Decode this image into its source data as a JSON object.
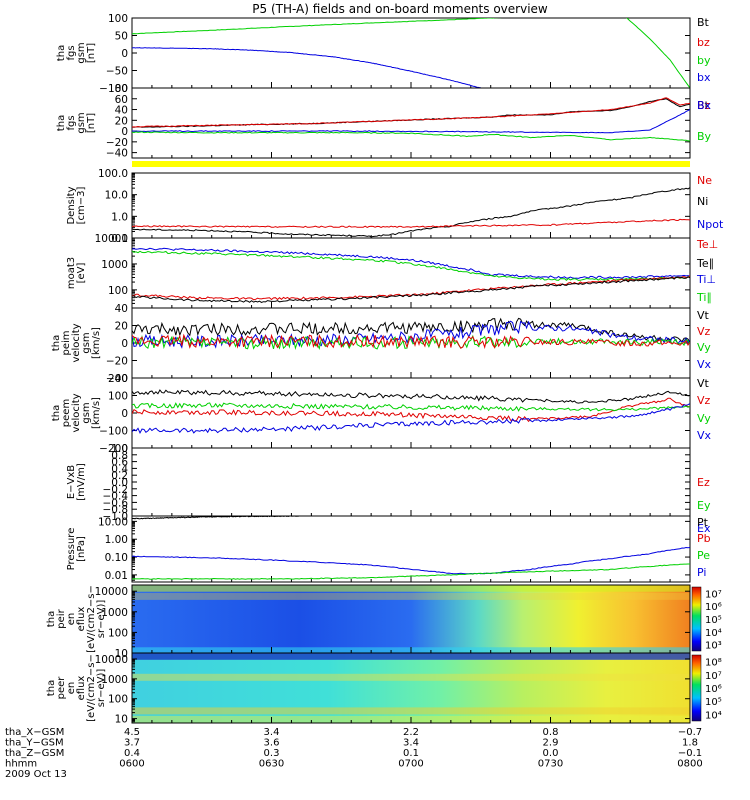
{
  "title": "P5 (TH-A) fields and on-board moments overview",
  "date_label": "2009 Oct 13",
  "colors": {
    "black": "#000000",
    "red": "#e00000",
    "green": "#00d000",
    "blue": "#0000e0",
    "yellow": "#ffff00"
  },
  "chart_data": [
    {
      "id": "fgs1",
      "type": "line",
      "ylabel": [
        "tha",
        "fgs",
        "gsm",
        "[nT]"
      ],
      "ylim": [
        -100,
        100
      ],
      "yscale": "linear",
      "yticks": [
        "100",
        "50",
        "0",
        "−50",
        "−100"
      ],
      "ytick_values": [
        100,
        50,
        0,
        -50,
        -100
      ],
      "legend": [
        {
          "name": "Bt",
          "color": "black"
        },
        {
          "name": "bz",
          "color": "red"
        },
        {
          "name": "by",
          "color": "green"
        },
        {
          "name": "bx",
          "color": "blue"
        }
      ],
      "series": [
        {
          "name": "by",
          "color": "green",
          "x": [
            0,
            4,
            8,
            12,
            16,
            20,
            22.4,
            24.6,
            26,
            27,
            28
          ],
          "y": [
            55,
            65,
            76,
            86,
            95,
            105,
            112,
            112,
            40,
            -20,
            -100
          ]
        },
        {
          "name": "bx",
          "color": "blue",
          "x": [
            0,
            2,
            4,
            6,
            8,
            10,
            12,
            14,
            16,
            17.5
          ],
          "y": [
            15,
            14,
            12,
            8,
            1,
            -10,
            -28,
            -52,
            -78,
            -100
          ]
        }
      ]
    },
    {
      "id": "fgs2",
      "type": "line",
      "ylabel": [
        "tha",
        "fgs",
        "gsm",
        "[nT]"
      ],
      "ylim": [
        -50,
        80
      ],
      "yscale": "linear",
      "yticks": [
        "80",
        "60",
        "40",
        "20",
        "0",
        "−20",
        "−40"
      ],
      "ytick_values": [
        80,
        60,
        40,
        20,
        0,
        -20,
        -40
      ],
      "legend": [
        {
          "name": "Bt",
          "color": "black"
        },
        {
          "name": "Bz",
          "color": "red"
        },
        {
          "name": "Bx",
          "color": "blue"
        },
        {
          "name": "By",
          "color": "green"
        }
      ],
      "series": [
        {
          "name": "Bt",
          "color": "black",
          "x": [
            0,
            3,
            6,
            9,
            12,
            15,
            18,
            19,
            21,
            22,
            24,
            25,
            26,
            26.8,
            27.5,
            28
          ],
          "y": [
            7,
            9,
            12,
            14,
            18,
            22,
            26,
            30,
            30,
            36,
            38,
            45,
            55,
            60,
            45,
            50
          ]
        },
        {
          "name": "Bz",
          "color": "red",
          "x": [
            0,
            3,
            6,
            9,
            12,
            15,
            18,
            21,
            24,
            26,
            26.8,
            27.5,
            28
          ],
          "y": [
            8,
            10,
            12,
            14,
            18,
            22,
            26,
            32,
            40,
            52,
            62,
            48,
            52
          ]
        },
        {
          "name": "Bx",
          "color": "blue",
          "x": [
            0,
            4,
            8,
            12,
            16,
            20,
            24,
            26,
            27.5,
            28
          ],
          "y": [
            0,
            0,
            0,
            0,
            -1,
            -2,
            -3,
            2,
            30,
            40
          ]
        },
        {
          "name": "By",
          "color": "green",
          "x": [
            0,
            4,
            8,
            11,
            14,
            17,
            18,
            20,
            22,
            24,
            26,
            28
          ],
          "y": [
            -2,
            -3,
            -3,
            -3,
            -4,
            -10,
            -6,
            -12,
            -8,
            -16,
            -12,
            -18
          ]
        }
      ]
    },
    {
      "id": "density",
      "type": "line",
      "ylabel": [
        "Density",
        "[cm−3]"
      ],
      "ylim": [
        0.1,
        100
      ],
      "yscale": "log",
      "yticks": [
        "100.0",
        "10.0",
        "1.0",
        "0.1"
      ],
      "ytick_values": [
        100,
        10,
        1,
        0.1
      ],
      "legend": [
        {
          "name": "Ne",
          "color": "red"
        },
        {
          "name": "Ni",
          "color": "black"
        },
        {
          "name": "Npot",
          "color": "blue"
        }
      ],
      "series": [
        {
          "name": "Ni",
          "color": "black",
          "x": [
            0,
            4,
            8,
            12,
            13,
            16,
            19,
            22,
            25,
            28
          ],
          "y": [
            0.25,
            0.22,
            0.15,
            0.12,
            0.14,
            0.35,
            1.0,
            3.0,
            7.0,
            20.0
          ]
        },
        {
          "name": "Ne",
          "color": "red",
          "x": [
            0,
            7,
            14,
            21,
            28
          ],
          "y": [
            0.35,
            0.33,
            0.33,
            0.4,
            0.7
          ]
        }
      ]
    },
    {
      "id": "temp",
      "type": "line",
      "ylabel": [
        "moat3",
        "[eV]"
      ],
      "ylim": [
        20,
        10000
      ],
      "yscale": "log",
      "yticks": [
        "10000",
        "1000",
        "100"
      ],
      "ytick_values": [
        10000,
        1000,
        100
      ],
      "legend": [
        {
          "name": "Te⊥",
          "color": "red"
        },
        {
          "name": "Te∥",
          "color": "black"
        },
        {
          "name": "Ti⊥",
          "color": "blue"
        },
        {
          "name": "Ti∥",
          "color": "green"
        }
      ],
      "series": [
        {
          "name": "Ti⊥",
          "color": "blue",
          "x": [
            0,
            3,
            6,
            9,
            12,
            14,
            16,
            18,
            20,
            22,
            25,
            28
          ],
          "y": [
            4000,
            3500,
            3000,
            2500,
            1900,
            1400,
            800,
            400,
            330,
            300,
            310,
            360
          ]
        },
        {
          "name": "Ti∥",
          "color": "green",
          "x": [
            0,
            3,
            6,
            9,
            12,
            14,
            16,
            18,
            20,
            22,
            25,
            28
          ],
          "y": [
            3000,
            2600,
            2200,
            1800,
            1400,
            1000,
            600,
            330,
            270,
            250,
            260,
            300
          ]
        },
        {
          "name": "Te⊥",
          "color": "red",
          "x": [
            0,
            3,
            6,
            9,
            12,
            15,
            18,
            21,
            24,
            28
          ],
          "y": [
            65,
            50,
            45,
            48,
            55,
            70,
            110,
            160,
            220,
            320
          ]
        },
        {
          "name": "Te∥",
          "color": "black",
          "x": [
            0,
            3,
            6,
            9,
            12,
            15,
            18,
            21,
            24,
            28
          ],
          "y": [
            55,
            40,
            35,
            40,
            50,
            65,
            100,
            150,
            200,
            300
          ]
        }
      ]
    },
    {
      "id": "vel1",
      "type": "line",
      "ylabel": [
        "tha",
        "peim",
        "velocity",
        "gsm",
        "[km/s]"
      ],
      "ylim": [
        -40,
        40
      ],
      "yscale": "linear",
      "yticks": [
        "40",
        "20",
        "0",
        "−20",
        "−40"
      ],
      "ytick_values": [
        40,
        20,
        0,
        -20,
        -40
      ],
      "legend": [
        {
          "name": "Vt",
          "color": "black"
        },
        {
          "name": "Vz",
          "color": "red"
        },
        {
          "name": "Vy",
          "color": "green"
        },
        {
          "name": "Vx",
          "color": "blue"
        }
      ],
      "series": [
        {
          "name": "Vt",
          "color": "black",
          "x": [
            0,
            4,
            8,
            12,
            16,
            19,
            22,
            25,
            28
          ],
          "y": [
            15,
            16,
            16,
            17,
            18,
            22,
            20,
            8,
            2
          ]
        },
        {
          "name": "Vx",
          "color": "blue",
          "x": [
            0,
            4,
            8,
            12,
            16,
            19,
            22,
            25,
            28
          ],
          "y": [
            2,
            2,
            3,
            5,
            10,
            18,
            17,
            6,
            2
          ]
        },
        {
          "name": "Vy",
          "color": "green",
          "x": [
            0,
            4,
            8,
            12,
            16,
            19,
            22,
            25,
            28
          ],
          "y": [
            0,
            0,
            0,
            0,
            1,
            2,
            2,
            1,
            1
          ]
        },
        {
          "name": "Vz",
          "color": "red",
          "x": [
            0,
            4,
            8,
            12,
            16,
            19,
            22,
            25,
            28
          ],
          "y": [
            2,
            2,
            2,
            2,
            1,
            1,
            1,
            0,
            0
          ]
        }
      ]
    },
    {
      "id": "vel2",
      "type": "line",
      "ylabel": [
        "tha",
        "peem",
        "velocity",
        "gsm",
        "[km/s]"
      ],
      "ylim": [
        -200,
        200
      ],
      "yscale": "linear",
      "yticks": [
        "200",
        "100",
        "0",
        "−100",
        "−200"
      ],
      "ytick_values": [
        200,
        100,
        0,
        -100,
        -200
      ],
      "legend": [
        {
          "name": "Vt",
          "color": "black"
        },
        {
          "name": "Vz",
          "color": "red"
        },
        {
          "name": "Vy",
          "color": "green"
        },
        {
          "name": "Vx",
          "color": "blue"
        }
      ],
      "series": [
        {
          "name": "Vt",
          "color": "black",
          "x": [
            0,
            4,
            8,
            12,
            16,
            20,
            23,
            25,
            27,
            28
          ],
          "y": [
            120,
            115,
            110,
            100,
            90,
            75,
            60,
            80,
            120,
            100
          ]
        },
        {
          "name": "Vz",
          "color": "red",
          "x": [
            0,
            4,
            8,
            12,
            16,
            20,
            23,
            25,
            27,
            28
          ],
          "y": [
            5,
            5,
            0,
            -5,
            -20,
            -35,
            -20,
            40,
            80,
            30
          ]
        },
        {
          "name": "Vy",
          "color": "green",
          "x": [
            0,
            4,
            8,
            12,
            16,
            20,
            23,
            25,
            27,
            28
          ],
          "y": [
            40,
            45,
            40,
            35,
            30,
            25,
            20,
            20,
            30,
            40
          ]
        },
        {
          "name": "Vx",
          "color": "blue",
          "x": [
            0,
            4,
            8,
            12,
            16,
            20,
            23,
            25,
            27,
            28
          ],
          "y": [
            -100,
            -100,
            -90,
            -70,
            -55,
            -45,
            -30,
            -20,
            20,
            50
          ]
        }
      ]
    },
    {
      "id": "efield",
      "type": "line",
      "ylabel": [
        "E−VxB",
        "[mV/m]"
      ],
      "ylim": [
        -1,
        1
      ],
      "yscale": "linear",
      "yticks": [
        "1.0",
        "0.8",
        "0.6",
        "0.4",
        "0.2",
        "0.0",
        "−0.2",
        "−0.4",
        "−0.6",
        "−0.8",
        "−1.0"
      ],
      "ytick_values": [
        1,
        0.8,
        0.6,
        0.4,
        0.2,
        0,
        -0.2,
        -0.4,
        -0.6,
        -0.8,
        -1
      ],
      "legend": [
        {
          "name": "Ez",
          "color": "red"
        },
        {
          "name": "Ey",
          "color": "green"
        },
        {
          "name": "Ex",
          "color": "blue"
        }
      ],
      "series": []
    },
    {
      "id": "pressure",
      "type": "line",
      "ylabel": [
        "Pressure",
        "[nPa]"
      ],
      "ylim": [
        0.004,
        20
      ],
      "yscale": "log",
      "yticks": [
        "10.00",
        "1.00",
        "0.10",
        "0.01"
      ],
      "ytick_values": [
        10,
        1,
        0.1,
        0.01
      ],
      "legend": [
        {
          "name": "Pt",
          "color": "black"
        },
        {
          "name": "Pb",
          "color": "red"
        },
        {
          "name": "Pe",
          "color": "green"
        },
        {
          "name": "Pi",
          "color": "blue"
        }
      ],
      "series": [
        {
          "name": "Pt",
          "color": "black",
          "x": [
            0,
            2,
            4,
            6,
            8,
            8.5
          ],
          "y": [
            14,
            16,
            18,
            19,
            19.8,
            20
          ]
        },
        {
          "name": "Pi",
          "color": "blue",
          "x": [
            0,
            4,
            8,
            12,
            14,
            16,
            18,
            20,
            22,
            24,
            26,
            28
          ],
          "y": [
            0.11,
            0.09,
            0.06,
            0.035,
            0.02,
            0.012,
            0.012,
            0.02,
            0.04,
            0.08,
            0.15,
            0.35
          ]
        },
        {
          "name": "Pe",
          "color": "green",
          "x": [
            0,
            4,
            8,
            12,
            16,
            20,
            24,
            28
          ],
          "y": [
            0.006,
            0.006,
            0.006,
            0.007,
            0.01,
            0.015,
            0.02,
            0.04
          ]
        }
      ]
    },
    {
      "id": "ion_spec",
      "type": "heatmap",
      "ylabel": [
        "tha",
        "peir",
        "en",
        "eflux",
        "[eV/(cm2−s−",
        "sr−eV)]"
      ],
      "ylim": [
        10,
        20000
      ],
      "yscale": "log",
      "yticks": [
        "10000",
        "1000",
        "100",
        "10"
      ],
      "ytick_values": [
        10000,
        1000,
        100,
        10
      ],
      "colorbar": {
        "ticks": [
          "10⁷",
          "10⁶",
          "10⁵",
          "10⁴",
          "10³"
        ],
        "tick_values": [
          7,
          6,
          5,
          4,
          3
        ]
      }
    },
    {
      "id": "elec_spec",
      "type": "heatmap",
      "ylabel": [
        "tha",
        "peer",
        "en",
        "eflux",
        "[eV/(cm2−s−",
        "sr−eV)]"
      ],
      "ylim": [
        6,
        20000
      ],
      "yscale": "log",
      "yticks": [
        "10000",
        "1000",
        "100",
        "10"
      ],
      "ytick_values": [
        10000,
        1000,
        100,
        10
      ],
      "colorbar": {
        "ticks": [
          "10⁸",
          "10⁷",
          "10⁶",
          "10⁵",
          "10⁴"
        ],
        "tick_values": [
          8,
          7,
          6,
          5,
          4
        ]
      }
    }
  ],
  "x_axis": {
    "positions": [
      0,
      7,
      14,
      21,
      28
    ],
    "rows": [
      {
        "label": "tha_X−GSM",
        "values": [
          "4.5",
          "3.4",
          "2.2",
          "0.8",
          "−0.7"
        ]
      },
      {
        "label": "tha_Y−GSM",
        "values": [
          "3.7",
          "3.6",
          "3.4",
          "2.9",
          "1.8"
        ]
      },
      {
        "label": "tha_Z−GSM",
        "values": [
          "0.4",
          "0.3",
          "0.1",
          "0.0",
          "−0.1"
        ]
      },
      {
        "label": "hhmm",
        "values": [
          "0600",
          "0630",
          "0700",
          "0730",
          "0800"
        ]
      }
    ]
  }
}
